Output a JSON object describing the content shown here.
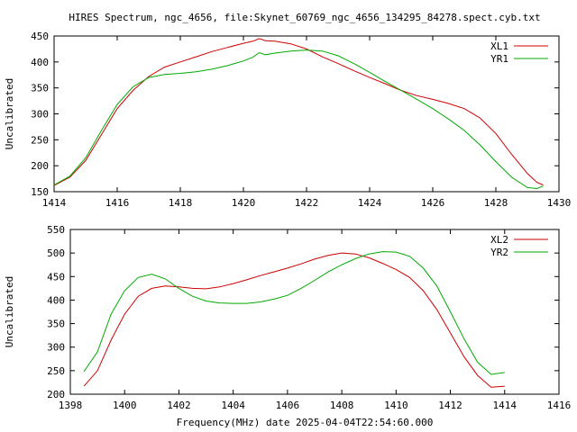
{
  "chart_data": [
    {
      "type": "line",
      "title": "HIRES Spectrum, ngc_4656, file:Skynet_60769_ngc_4656_134295_84278.spect.cyb.txt",
      "xlabel": "",
      "ylabel": "Uncalibrated",
      "xlim": [
        1414,
        1430
      ],
      "ylim": [
        150,
        450
      ],
      "xticks": [
        1414,
        1416,
        1418,
        1420,
        1422,
        1424,
        1426,
        1428,
        1430
      ],
      "yticks": [
        150,
        200,
        250,
        300,
        350,
        400,
        450
      ],
      "grid": false,
      "legend_position": "top-right",
      "series": [
        {
          "name": "XL1",
          "color": "#cc0000",
          "x": [
            1414.0,
            1414.5,
            1415.0,
            1415.5,
            1416.0,
            1416.5,
            1417.0,
            1417.5,
            1418.0,
            1418.5,
            1419.0,
            1419.5,
            1420.0,
            1420.3,
            1420.5,
            1420.7,
            1421.0,
            1421.5,
            1422.0,
            1422.5,
            1423.0,
            1423.5,
            1424.0,
            1424.5,
            1425.0,
            1425.5,
            1426.0,
            1426.5,
            1427.0,
            1427.5,
            1428.0,
            1428.5,
            1429.0,
            1429.3,
            1429.5
          ],
          "y": [
            162,
            178,
            210,
            260,
            310,
            345,
            372,
            390,
            400,
            410,
            420,
            428,
            436,
            440,
            445,
            441,
            440,
            435,
            425,
            410,
            397,
            383,
            370,
            358,
            345,
            335,
            328,
            320,
            310,
            292,
            262,
            222,
            185,
            168,
            163
          ]
        },
        {
          "name": "YR1",
          "color": "#00aa00",
          "x": [
            1414.0,
            1414.5,
            1415.0,
            1415.5,
            1416.0,
            1416.5,
            1417.0,
            1417.5,
            1418.0,
            1418.5,
            1419.0,
            1419.5,
            1420.0,
            1420.3,
            1420.5,
            1420.7,
            1421.0,
            1421.5,
            1422.0,
            1422.5,
            1423.0,
            1423.5,
            1424.0,
            1424.5,
            1425.0,
            1425.5,
            1426.0,
            1426.5,
            1427.0,
            1427.5,
            1428.0,
            1428.5,
            1429.0,
            1429.3,
            1429.5
          ],
          "y": [
            163,
            180,
            215,
            268,
            318,
            352,
            370,
            376,
            378,
            381,
            386,
            393,
            402,
            409,
            418,
            414,
            417,
            421,
            423,
            421,
            412,
            397,
            380,
            362,
            345,
            328,
            310,
            290,
            268,
            240,
            208,
            178,
            158,
            156,
            161
          ]
        }
      ]
    },
    {
      "type": "line",
      "title": "",
      "xlabel": "Frequency(MHz) date 2025-04-04T22:54:60.000",
      "ylabel": "Uncalibrated",
      "xlim": [
        1398,
        1416
      ],
      "ylim": [
        200,
        550
      ],
      "xticks": [
        1398,
        1400,
        1402,
        1404,
        1406,
        1408,
        1410,
        1412,
        1414,
        1416
      ],
      "yticks": [
        200,
        250,
        300,
        350,
        400,
        450,
        500,
        550
      ],
      "grid": false,
      "legend_position": "top-right",
      "series": [
        {
          "name": "XL2",
          "color": "#cc0000",
          "x": [
            1398.5,
            1399.0,
            1399.5,
            1400.0,
            1400.5,
            1401.0,
            1401.5,
            1402.0,
            1402.5,
            1403.0,
            1403.5,
            1404.0,
            1404.5,
            1405.0,
            1405.5,
            1406.0,
            1406.5,
            1407.0,
            1407.5,
            1408.0,
            1408.5,
            1409.0,
            1409.5,
            1410.0,
            1410.5,
            1411.0,
            1411.5,
            1412.0,
            1412.5,
            1413.0,
            1413.5,
            1414.0
          ],
          "y": [
            217,
            250,
            315,
            370,
            408,
            425,
            430,
            428,
            425,
            424,
            428,
            435,
            443,
            452,
            460,
            468,
            477,
            487,
            495,
            500,
            498,
            490,
            478,
            465,
            448,
            420,
            380,
            330,
            280,
            240,
            215,
            217
          ]
        },
        {
          "name": "YR2",
          "color": "#00aa00",
          "x": [
            1398.5,
            1399.0,
            1399.5,
            1400.0,
            1400.5,
            1401.0,
            1401.5,
            1402.0,
            1402.5,
            1403.0,
            1403.5,
            1404.0,
            1404.5,
            1405.0,
            1405.5,
            1406.0,
            1406.5,
            1407.0,
            1407.5,
            1408.0,
            1408.5,
            1409.0,
            1409.5,
            1410.0,
            1410.5,
            1411.0,
            1411.5,
            1412.0,
            1412.5,
            1413.0,
            1413.5,
            1414.0
          ],
          "y": [
            248,
            290,
            370,
            420,
            448,
            455,
            445,
            425,
            408,
            398,
            394,
            393,
            393,
            396,
            402,
            410,
            425,
            442,
            460,
            475,
            488,
            498,
            503,
            502,
            493,
            468,
            430,
            375,
            318,
            268,
            242,
            246
          ]
        }
      ]
    }
  ]
}
